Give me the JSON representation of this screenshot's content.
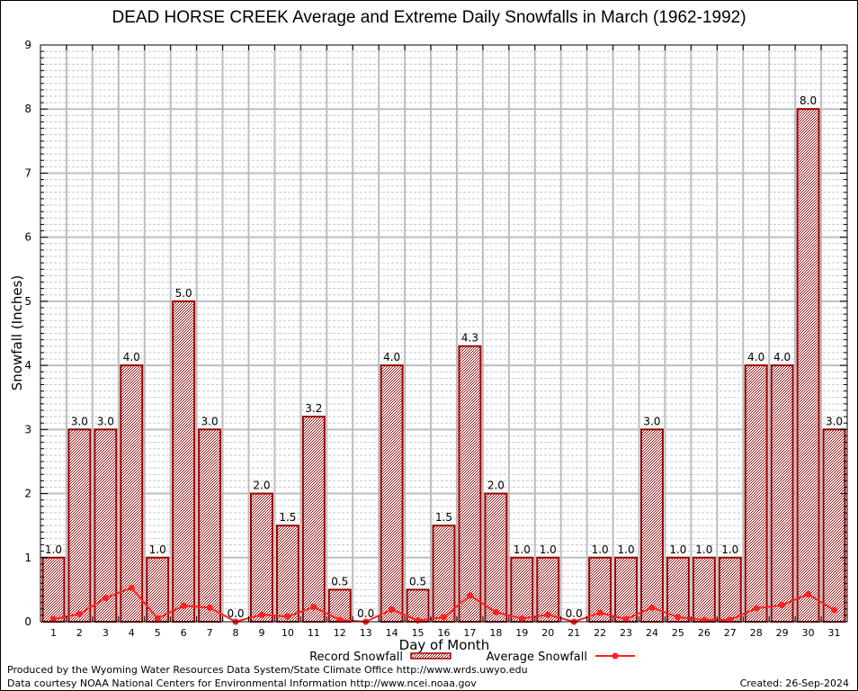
{
  "chart_data": {
    "type": "bar",
    "title": "DEAD HORSE CREEK Average and Extreme Daily Snowfalls in March (1962-1992)",
    "xlabel": "Day of Month",
    "ylabel": "Snowfall (Inches)",
    "ylim": [
      0,
      9
    ],
    "yticks": [
      "0",
      "1",
      "2",
      "3",
      "4",
      "5",
      "6",
      "7",
      "8",
      "9"
    ],
    "categories": [
      "1",
      "2",
      "3",
      "4",
      "5",
      "6",
      "7",
      "8",
      "9",
      "10",
      "11",
      "12",
      "13",
      "14",
      "15",
      "16",
      "17",
      "18",
      "19",
      "20",
      "21",
      "22",
      "23",
      "24",
      "25",
      "26",
      "27",
      "28",
      "29",
      "30",
      "31"
    ],
    "grid": true,
    "legend_position": "bottom",
    "series": [
      {
        "name": "Record Snowfall",
        "type": "bar",
        "color": "#990000",
        "values": [
          1.0,
          3.0,
          3.0,
          4.0,
          1.0,
          5.0,
          3.0,
          0.0,
          2.0,
          1.5,
          3.2,
          0.5,
          0.0,
          4.0,
          0.5,
          1.5,
          4.3,
          2.0,
          1.0,
          1.0,
          0.0,
          1.0,
          1.0,
          3.0,
          1.0,
          1.0,
          1.0,
          4.0,
          4.0,
          8.0,
          3.0
        ],
        "labels": [
          "1.0",
          "3.0",
          "3.0",
          "4.0",
          "1.0",
          "5.0",
          "3.0",
          "0.0",
          "2.0",
          "1.5",
          "3.2",
          "0.5",
          "0.0",
          "4.0",
          "0.5",
          "1.5",
          "4.3",
          "2.0",
          "1.0",
          "1.0",
          "0.0",
          "1.0",
          "1.0",
          "3.0",
          "1.0",
          "1.0",
          "1.0",
          "4.0",
          "4.0",
          "8.0",
          "3.0"
        ]
      },
      {
        "name": "Average Snowfall",
        "type": "line",
        "color": "#ff2020",
        "values": [
          0.04,
          0.12,
          0.37,
          0.53,
          0.05,
          0.25,
          0.22,
          0.0,
          0.11,
          0.08,
          0.23,
          0.03,
          0.0,
          0.19,
          0.02,
          0.07,
          0.41,
          0.15,
          0.05,
          0.11,
          0.0,
          0.14,
          0.04,
          0.22,
          0.07,
          0.03,
          0.03,
          0.21,
          0.26,
          0.43,
          0.18
        ]
      }
    ]
  },
  "footer": {
    "produced_by": "Produced by the Wyoming Water Resources Data System/State Climate Office http://www.wrds.uwyo.edu",
    "data_courtesy": "Data courtesy NOAA National Centers for Environmental Information http://www.ncei.noaa.gov",
    "created": "Created: 26-Sep-2024"
  }
}
